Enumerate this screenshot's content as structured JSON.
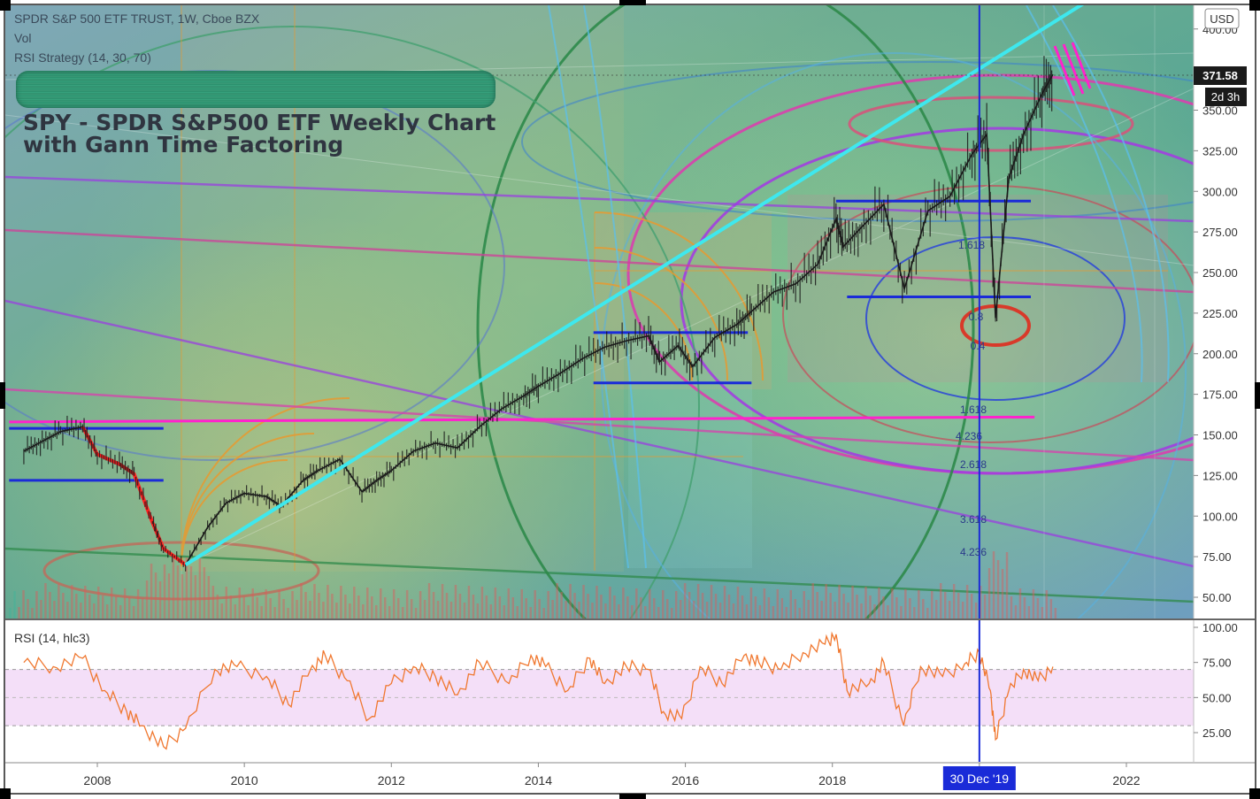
{
  "header": {
    "symbol_line": "SPDR S&P 500 ETF TRUST, 1W, Cboe BZX",
    "vol_label": "Vol",
    "strategy_label": "RSI Strategy (14, 30, 70)",
    "title_line1": "SPY - SPDR S&P500 ETF Weekly Chart",
    "title_line2": "with Gann Time Factoring"
  },
  "currency_badge": "USD",
  "last_price_label": "371.58",
  "countdown_label": "2d 3h",
  "crosshair_date_label": "30 Dec '19",
  "fib_labels": [
    "1.618",
    "0.8",
    "0.4",
    "1.618",
    "4.236",
    "2.618",
    "3.618",
    "4.236"
  ],
  "colors": {
    "price_candles": "#1a1a1a",
    "trendline": "#3ee8ee",
    "support_lines": "#1a2bd8",
    "magenta_line": "#ff22cc",
    "crosshair": "#1a2bd8",
    "rsi_line": "#f07830",
    "rsi_band": "#f3dcf7",
    "highlight_red": "#ff2020"
  },
  "chart_data": [
    {
      "type": "line",
      "title": "SPDR S&P 500 ETF TRUST, 1W, Cboe BZX",
      "ylim": [
        40,
        410
      ],
      "xlim": [
        2006.75,
        2022.9
      ],
      "y_ticks": [
        50,
        75,
        100,
        125,
        150,
        175,
        200,
        225,
        250,
        275,
        300,
        325,
        350,
        400
      ],
      "y_tick_labels": [
        "50.00",
        "75.00",
        "100.00",
        "125.00",
        "150.00",
        "175.00",
        "200.00",
        "225.00",
        "250.00",
        "275.00",
        "300.00",
        "325.00",
        "350.00",
        "400.00"
      ],
      "x_ticks": [
        2008,
        2010,
        2012,
        2014,
        2016,
        2018,
        2020,
        2022
      ],
      "x_tick_labels": [
        "2008",
        "2010",
        "2012",
        "2014",
        "2016",
        "2018",
        "",
        "2022"
      ],
      "series": [
        {
          "values_x": [
            2007.0,
            2007.25,
            2007.5,
            2007.8,
            2008.0,
            2008.3,
            2008.5,
            2008.75,
            2008.9,
            2009.2,
            2009.5,
            2009.75,
            2010.0,
            2010.3,
            2010.5,
            2010.8,
            2011.0,
            2011.3,
            2011.6,
            2011.8,
            2012.0,
            2012.3,
            2012.6,
            2012.9,
            2013.2,
            2013.5,
            2013.8,
            2014.0,
            2014.3,
            2014.6,
            2014.9,
            2015.2,
            2015.5,
            2015.65,
            2015.9,
            2016.1,
            2016.4,
            2016.7,
            2016.9,
            2017.2,
            2017.5,
            2017.8,
            2018.05,
            2018.15,
            2018.4,
            2018.7,
            2018.98,
            2019.3,
            2019.6,
            2019.9,
            2020.1,
            2020.22,
            2020.4,
            2020.6,
            2020.85,
            2021.0
          ],
          "values_y": [
            140,
            146,
            152,
            155,
            138,
            132,
            126,
            96,
            80,
            70,
            93,
            108,
            114,
            112,
            106,
            122,
            128,
            135,
            115,
            122,
            128,
            140,
            145,
            142,
            155,
            166,
            174,
            180,
            188,
            197,
            204,
            208,
            211,
            195,
            205,
            192,
            210,
            218,
            226,
            238,
            243,
            255,
            283,
            266,
            278,
            292,
            240,
            288,
            297,
            323,
            335,
            222,
            308,
            335,
            360,
            372
          ]
        }
      ],
      "trendline": {
        "x": [
          2009.2,
          2021.5
        ],
        "y": [
          70,
          418
        ]
      },
      "support_lines": [
        {
          "x": [
            2006.8,
            2008.9
          ],
          "y": [
            154,
            154
          ]
        },
        {
          "x": [
            2006.8,
            2008.9
          ],
          "y": [
            122,
            122
          ]
        },
        {
          "x": [
            2014.75,
            2016.85
          ],
          "y": [
            213,
            213
          ]
        },
        {
          "x": [
            2014.75,
            2016.9
          ],
          "y": [
            182,
            182
          ]
        },
        {
          "x": [
            2018.05,
            2020.7
          ],
          "y": [
            294,
            294
          ]
        },
        {
          "x": [
            2018.2,
            2020.7
          ],
          "y": [
            235,
            235
          ]
        }
      ],
      "magenta_line": {
        "x": [
          2006.8,
          2020.75
        ],
        "y": [
          158,
          161
        ]
      },
      "crosshair_x": 2020.0
    },
    {
      "type": "line",
      "title": "RSI (14, hlc3)",
      "ylim": [
        5,
        105
      ],
      "y_ticks": [
        25,
        50,
        75,
        100
      ],
      "y_tick_labels": [
        "25.00",
        "50.00",
        "75.00",
        "100.00"
      ],
      "band": [
        30,
        70
      ],
      "series": [
        {
          "values_x": [
            2007.0,
            2007.4,
            2007.8,
            2008.1,
            2008.4,
            2008.6,
            2008.9,
            2009.2,
            2009.6,
            2009.9,
            2010.3,
            2010.6,
            2010.9,
            2011.1,
            2011.4,
            2011.7,
            2012.0,
            2012.3,
            2012.6,
            2012.9,
            2013.2,
            2013.6,
            2013.9,
            2014.1,
            2014.4,
            2014.7,
            2014.9,
            2015.2,
            2015.5,
            2015.7,
            2015.95,
            2016.2,
            2016.5,
            2016.8,
            2017.0,
            2017.3,
            2017.6,
            2017.9,
            2018.05,
            2018.2,
            2018.5,
            2018.7,
            2018.97,
            2019.2,
            2019.5,
            2019.8,
            2020.0,
            2020.15,
            2020.22,
            2020.4,
            2020.6,
            2020.8,
            2021.0
          ],
          "values_y": [
            75,
            72,
            78,
            55,
            40,
            30,
            15,
            28,
            70,
            72,
            65,
            45,
            70,
            80,
            62,
            35,
            60,
            72,
            65,
            52,
            75,
            60,
            80,
            72,
            55,
            78,
            60,
            72,
            70,
            40,
            35,
            72,
            60,
            80,
            75,
            70,
            82,
            88,
            95,
            55,
            60,
            75,
            30,
            72,
            65,
            74,
            82,
            55,
            20,
            55,
            70,
            62,
            72
          ]
        }
      ]
    }
  ]
}
